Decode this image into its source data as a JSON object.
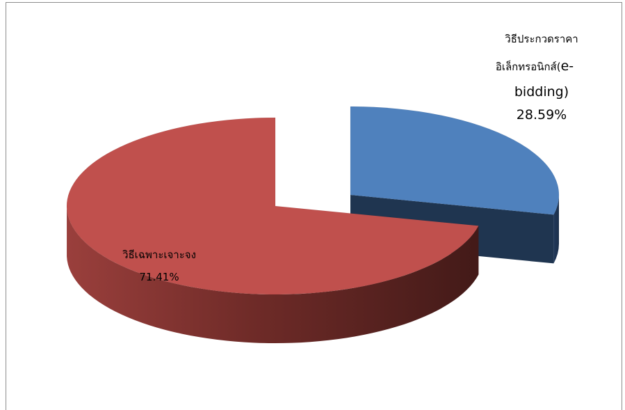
{
  "chart_data": {
    "type": "pie",
    "style": "3d-exploded",
    "series": [
      {
        "label_lines": [
          "วิธีประกวดราคา",
          "อิเล็กทรอนิกส์(",
          "e-",
          "bidding)"
        ],
        "percent_label": "28.59%",
        "value": 28.59,
        "color": "#4f81bd",
        "side_color": "#1f3550"
      },
      {
        "label_lines": [
          "วิธีเฉพาะเจาะจง"
        ],
        "percent_label": "71.41%",
        "value": 71.41,
        "color": "#c0504d",
        "side_color": "#6e2a27"
      }
    ]
  }
}
